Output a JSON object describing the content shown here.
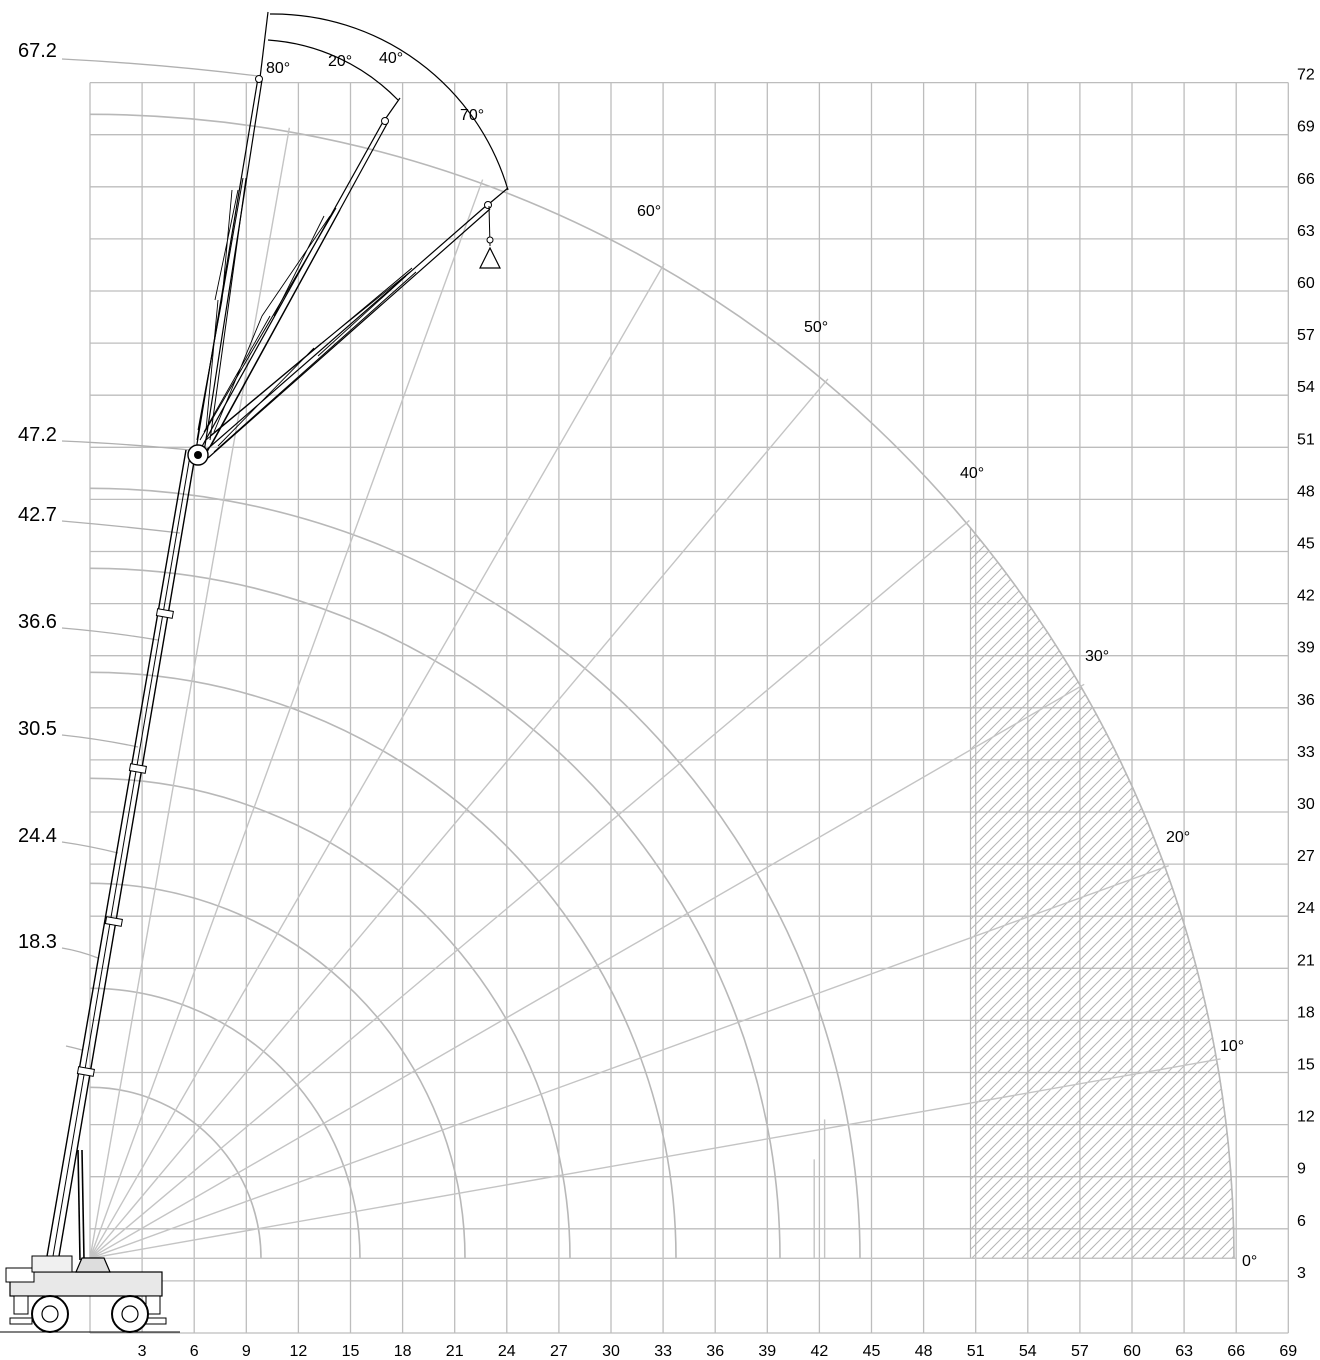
{
  "diagram": {
    "x_axis": {
      "ticks": [
        "3",
        "6",
        "9",
        "12",
        "15",
        "18",
        "21",
        "24",
        "27",
        "30",
        "33",
        "36",
        "39",
        "42",
        "45",
        "48",
        "51",
        "54",
        "57",
        "60",
        "63",
        "66",
        "69"
      ]
    },
    "y_axis": {
      "ticks": [
        "3",
        "6",
        "9",
        "12",
        "15",
        "18",
        "21",
        "24",
        "27",
        "30",
        "33",
        "36",
        "39",
        "42",
        "45",
        "48",
        "51",
        "54",
        "57",
        "60",
        "63",
        "66",
        "69",
        "72"
      ]
    },
    "boom_lengths": [
      "67.2",
      "47.2",
      "42.7",
      "36.6",
      "30.5",
      "24.4",
      "18.3"
    ],
    "boom_angles": [
      "80°",
      "70°",
      "60°",
      "50°",
      "40°",
      "30°",
      "20°",
      "10°",
      "0°"
    ],
    "jib_offsets": [
      "80°",
      "20°",
      "40°"
    ],
    "colors": {
      "grid": "#bdbdbd",
      "arcs": "#b8b8b8",
      "hatch": "#b5b5b5",
      "boom": "#000000"
    }
  }
}
